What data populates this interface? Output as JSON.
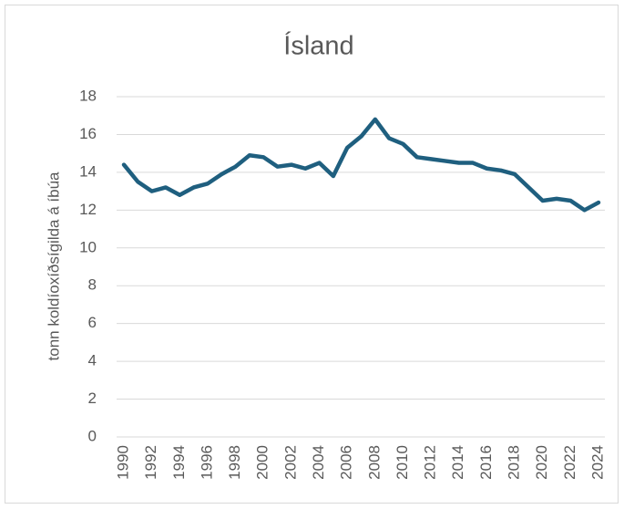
{
  "chart_data": {
    "type": "line",
    "title": "Ísland",
    "y_label": "tonn koldíoxíðsígilda á íbúa",
    "x": [
      1990,
      1991,
      1992,
      1993,
      1994,
      1995,
      1996,
      1997,
      1998,
      1999,
      2000,
      2001,
      2002,
      2003,
      2004,
      2005,
      2006,
      2007,
      2008,
      2009,
      2010,
      2011,
      2012,
      2013,
      2014,
      2015,
      2016,
      2017,
      2018,
      2019,
      2020,
      2021,
      2022,
      2023,
      2024
    ],
    "series": [
      {
        "name": "Ísland",
        "color": "#1f5f7f",
        "values": [
          14.4,
          13.5,
          13.0,
          13.2,
          12.8,
          13.2,
          13.4,
          13.9,
          14.3,
          14.9,
          14.8,
          14.3,
          14.4,
          14.2,
          14.5,
          13.8,
          15.3,
          15.9,
          16.8,
          15.8,
          15.5,
          14.8,
          14.7,
          14.6,
          14.5,
          14.5,
          14.2,
          14.1,
          13.9,
          13.2,
          12.5,
          12.6,
          12.5,
          12.0,
          12.4
        ]
      }
    ],
    "xlim": [
      1990,
      2024
    ],
    "xticks": [
      1990,
      1992,
      1994,
      1996,
      1998,
      2000,
      2002,
      2004,
      2006,
      2008,
      2010,
      2012,
      2014,
      2016,
      2018,
      2020,
      2022,
      2024
    ],
    "ylim": [
      0,
      18
    ],
    "yticks": [
      0,
      2,
      4,
      6,
      8,
      10,
      12,
      14,
      16,
      18
    ],
    "grid": true
  }
}
